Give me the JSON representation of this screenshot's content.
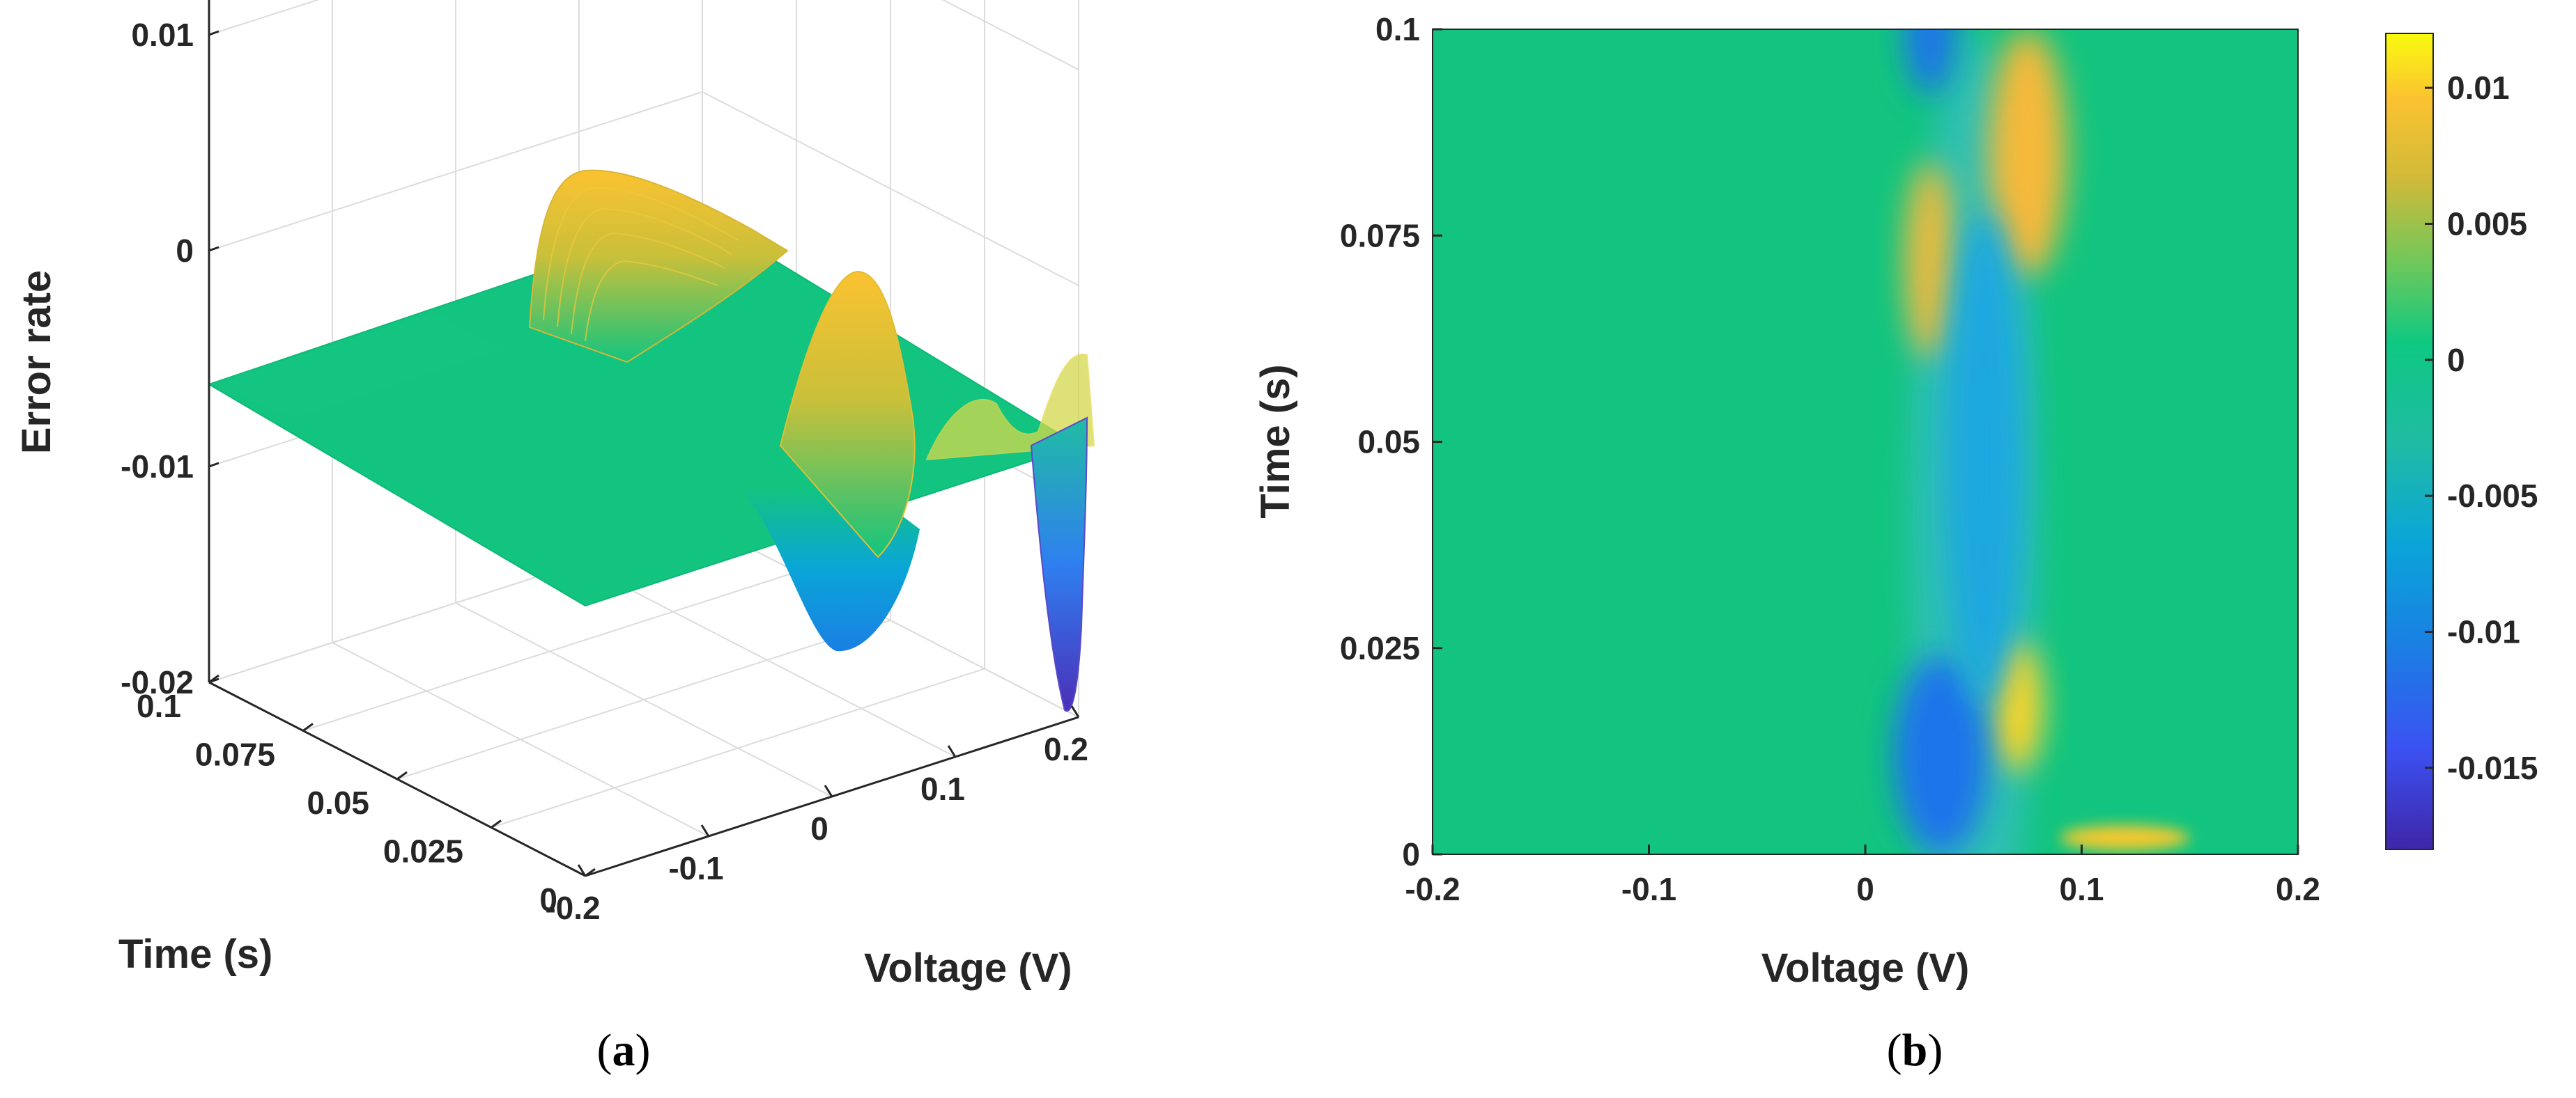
{
  "panel_a_label": {
    "open": "(",
    "letter": "a",
    "close": ")"
  },
  "panel_b_label": {
    "open": "(",
    "letter": "b",
    "close": ")"
  },
  "chart_data": [
    {
      "type": "surface",
      "panel": "a",
      "title": "",
      "xlabel": "Voltage (V)",
      "ylabel": "Time (s)",
      "zlabel": "Error rate",
      "xlim": [
        -0.2,
        0.2
      ],
      "ylim": [
        0,
        0.1
      ],
      "zlim": [
        -0.02,
        0.015
      ],
      "x_ticks": [
        "-0.2",
        "-0.1",
        "0",
        "0.1",
        "0.2"
      ],
      "x_tick_values": [
        -0.2,
        -0.1,
        0,
        0.1,
        0.2
      ],
      "y_ticks": [
        "0",
        "0.025",
        "0.05",
        "0.075",
        "0.1"
      ],
      "y_tick_values": [
        0,
        0.025,
        0.05,
        0.075,
        0.1
      ],
      "z_ticks": [
        "-0.02",
        "-0.01",
        "0",
        "0.01"
      ],
      "z_tick_values": [
        -0.02,
        -0.01,
        0,
        0.01
      ],
      "grid": true,
      "colormap": "parula",
      "features": [
        {
          "voltage": 0.04,
          "time": 0.075,
          "error_rate": 0.0115,
          "kind": "peak"
        },
        {
          "voltage": 0.075,
          "time": 0.02,
          "error_rate": 0.008,
          "kind": "peak"
        },
        {
          "voltage": 0.05,
          "time": 0.05,
          "error_rate": -0.011,
          "kind": "valley"
        },
        {
          "voltage": 0.13,
          "time": 0.0,
          "error_rate": -0.0195,
          "kind": "valley"
        }
      ]
    },
    {
      "type": "heatmap",
      "panel": "b",
      "title": "",
      "xlabel": "Voltage (V)",
      "ylabel": "Time (s)",
      "xlim": [
        -0.2,
        0.2
      ],
      "ylim": [
        0,
        0.1
      ],
      "x_ticks": [
        "-0.2",
        "-0.1",
        "0",
        "0.1",
        "0.2"
      ],
      "x_tick_values": [
        -0.2,
        -0.1,
        0,
        0.1,
        0.2
      ],
      "y_ticks": [
        "0",
        "0.025",
        "0.05",
        "0.075",
        "0.1"
      ],
      "y_tick_values": [
        0,
        0.025,
        0.05,
        0.075,
        0.1
      ],
      "colorbar": {
        "range": [
          -0.018,
          0.012
        ],
        "ticks": [
          "-0.015",
          "-0.01",
          "-0.005",
          "0",
          "0.005",
          "0.01"
        ],
        "tick_values": [
          -0.015,
          -0.01,
          -0.005,
          0,
          0.005,
          0.01
        ]
      },
      "colormap": "parula",
      "features": [
        {
          "voltage": 0.075,
          "time": 0.085,
          "value": 0.007,
          "kind": "high"
        },
        {
          "voltage": 0.03,
          "time": 0.072,
          "value": 0.0055,
          "kind": "high"
        },
        {
          "voltage": 0.07,
          "time": 0.018,
          "value": 0.0105,
          "kind": "high"
        },
        {
          "voltage": 0.035,
          "time": 0.012,
          "value": -0.0085,
          "kind": "low"
        },
        {
          "voltage": 0.055,
          "time": 0.048,
          "value": -0.006,
          "kind": "low"
        },
        {
          "voltage": 0.03,
          "time": 0.1,
          "value": -0.01,
          "kind": "low"
        }
      ]
    }
  ]
}
